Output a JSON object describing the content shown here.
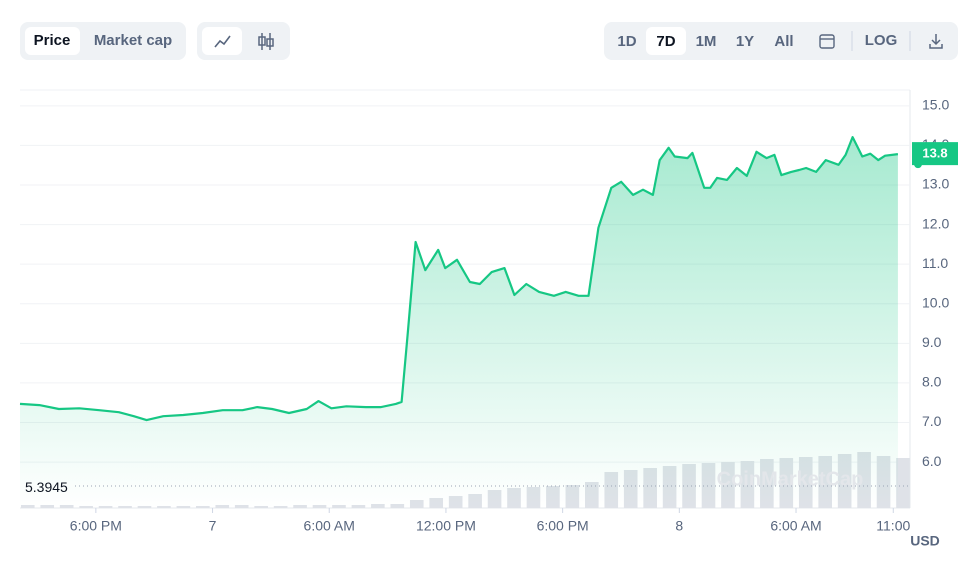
{
  "toolbar": {
    "views": [
      "Price",
      "Market cap"
    ],
    "ranges": [
      "1D",
      "7D",
      "1M",
      "1Y",
      "All"
    ],
    "log": "LOG"
  },
  "chart_data": {
    "type": "line",
    "color": "#16c784",
    "watermark": "CoinMarketCap",
    "unit": "USD",
    "x": [
      -9.9,
      -8.9,
      -7.9,
      -6.85,
      -5.83,
      -4.82,
      -4.05,
      -3.39,
      -2.53,
      -1.51,
      -0.5,
      0.52,
      1.54,
      2.3,
      3.06,
      3.93,
      4.84,
      5.45,
      6.11,
      6.88,
      7.89,
      8.66,
      9.42,
      9.72,
      10.03,
      10.44,
      10.94,
      11.6,
      11.96,
      12.57,
      13.23,
      13.74,
      14.35,
      15.01,
      15.52,
      16.13,
      16.79,
      17.55,
      18.16,
      18.82,
      19.33,
      19.84,
      20.5,
      21.01,
      21.62,
      22.13,
      22.64,
      22.99,
      23.45,
      23.76,
      24.42,
      24.67,
      25.28,
      25.59,
      25.94,
      26.45,
      26.96,
      27.47,
      27.97,
      28.48,
      28.89,
      29.25,
      29.75,
      30.16,
      30.52,
      31.03,
      31.53,
      32.19,
      32.55,
      32.91,
      33.41,
      33.82,
      34.23,
      34.58,
      35.24
    ],
    "values": [
      7.47,
      7.44,
      7.34,
      7.36,
      7.31,
      7.26,
      7.16,
      7.06,
      7.16,
      7.19,
      7.24,
      7.31,
      7.31,
      7.39,
      7.34,
      7.24,
      7.34,
      7.54,
      7.36,
      7.41,
      7.39,
      7.39,
      7.47,
      7.52,
      9.21,
      11.56,
      10.85,
      11.36,
      10.9,
      11.11,
      10.55,
      10.5,
      10.8,
      10.9,
      10.22,
      10.5,
      10.3,
      10.2,
      10.3,
      10.2,
      10.2,
      11.92,
      12.93,
      13.08,
      12.75,
      12.88,
      12.75,
      13.63,
      13.94,
      13.72,
      13.68,
      13.81,
      12.93,
      12.93,
      13.18,
      13.13,
      13.43,
      13.23,
      13.84,
      13.68,
      13.76,
      13.25,
      13.33,
      13.38,
      13.43,
      13.33,
      13.63,
      13.51,
      13.76,
      14.21,
      13.72,
      13.79,
      13.63,
      13.74,
      13.78
    ],
    "last_label": "13.8",
    "low": 5.3945,
    "xlim": [
      -9.9,
      35.86
    ],
    "xticks": [
      {
        "value": -6,
        "label": "6:00 PM"
      },
      {
        "value": 0,
        "label": "7"
      },
      {
        "value": 6,
        "label": "6:00 AM"
      },
      {
        "value": 12,
        "label": "12:00 PM"
      },
      {
        "value": 18,
        "label": "6:00 PM"
      },
      {
        "value": 24,
        "label": "8"
      },
      {
        "value": 30,
        "label": "6:00 AM"
      },
      {
        "value": 35,
        "label": "11:00"
      }
    ],
    "ylim": [
      4.84,
      15.4
    ],
    "yticks": [
      {
        "value": 6,
        "label": "6.0"
      },
      {
        "value": 7,
        "label": "7.0"
      },
      {
        "value": 8,
        "label": "8.0"
      },
      {
        "value": 9,
        "label": "9.0"
      },
      {
        "value": 10,
        "label": "10.0"
      },
      {
        "value": 11,
        "label": "11.0"
      },
      {
        "value": 12,
        "label": "12.0"
      },
      {
        "value": 13,
        "label": "13.0"
      },
      {
        "value": 14,
        "label": "14.0"
      },
      {
        "value": 15,
        "label": "15.0"
      }
    ],
    "grid": true,
    "volume": {
      "color": "#dfe2e8",
      "ylim": [
        0,
        100
      ],
      "x": [
        -9.5,
        -8.5,
        -7.5,
        -6.5,
        -5.5,
        -4.5,
        -3.5,
        -2.5,
        -1.5,
        -0.5,
        0.5,
        1.5,
        2.5,
        3.5,
        4.5,
        5.5,
        6.5,
        7.5,
        8.5,
        9.5,
        10.5,
        11.5,
        12.5,
        13.5,
        14.5,
        15.5,
        16.5,
        17.5,
        18.5,
        19.5,
        20.5,
        21.5,
        22.5,
        23.5,
        24.5,
        25.5,
        26.5,
        27.5,
        28.5,
        29.5,
        30.5,
        31.5,
        32.5,
        33.5,
        34.5,
        35.5
      ],
      "values": [
        3,
        3,
        3,
        2,
        2,
        2,
        2,
        2,
        2,
        2,
        3,
        3,
        2,
        2,
        3,
        3,
        3,
        3,
        4,
        4,
        8,
        10,
        12,
        14,
        18,
        20,
        21,
        22,
        23,
        26,
        36,
        38,
        40,
        42,
        44,
        45,
        46,
        47,
        49,
        50,
        51,
        52,
        54,
        56,
        52,
        50
      ]
    }
  }
}
